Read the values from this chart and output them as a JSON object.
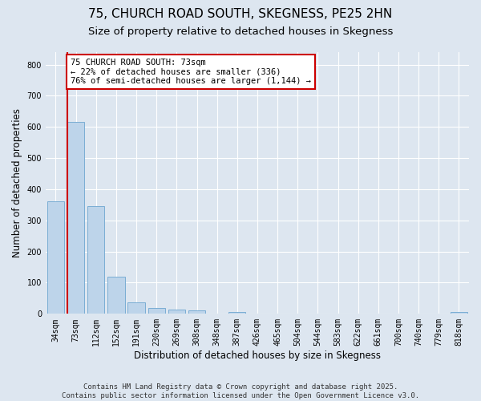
{
  "title_line1": "75, CHURCH ROAD SOUTH, SKEGNESS, PE25 2HN",
  "title_line2": "Size of property relative to detached houses in Skegness",
  "xlabel": "Distribution of detached houses by size in Skegness",
  "ylabel": "Number of detached properties",
  "categories": [
    "34sqm",
    "73sqm",
    "112sqm",
    "152sqm",
    "191sqm",
    "230sqm",
    "269sqm",
    "308sqm",
    "348sqm",
    "387sqm",
    "426sqm",
    "465sqm",
    "504sqm",
    "544sqm",
    "583sqm",
    "622sqm",
    "661sqm",
    "700sqm",
    "740sqm",
    "779sqm",
    "818sqm"
  ],
  "values": [
    360,
    617,
    345,
    118,
    38,
    20,
    15,
    10,
    0,
    7,
    0,
    0,
    0,
    0,
    0,
    0,
    0,
    0,
    0,
    0,
    7
  ],
  "bar_color": "#bdd4ea",
  "bar_edge_color": "#7aadd4",
  "vline_x_idx": 1,
  "vline_color": "#cc0000",
  "annotation_text": "75 CHURCH ROAD SOUTH: 73sqm\n← 22% of detached houses are smaller (336)\n76% of semi-detached houses are larger (1,144) →",
  "annotation_box_color": "#ffffff",
  "annotation_box_edge": "#cc0000",
  "ylim": [
    0,
    840
  ],
  "yticks": [
    0,
    100,
    200,
    300,
    400,
    500,
    600,
    700,
    800
  ],
  "bg_color": "#dde6f0",
  "plot_bg_color": "#dde6f0",
  "grid_color": "#ffffff",
  "footer": "Contains HM Land Registry data © Crown copyright and database right 2025.\nContains public sector information licensed under the Open Government Licence v3.0.",
  "title_fontsize": 11,
  "subtitle_fontsize": 9.5,
  "axis_label_fontsize": 8.5,
  "tick_fontsize": 7,
  "annotation_fontsize": 7.5,
  "footer_fontsize": 6.5
}
